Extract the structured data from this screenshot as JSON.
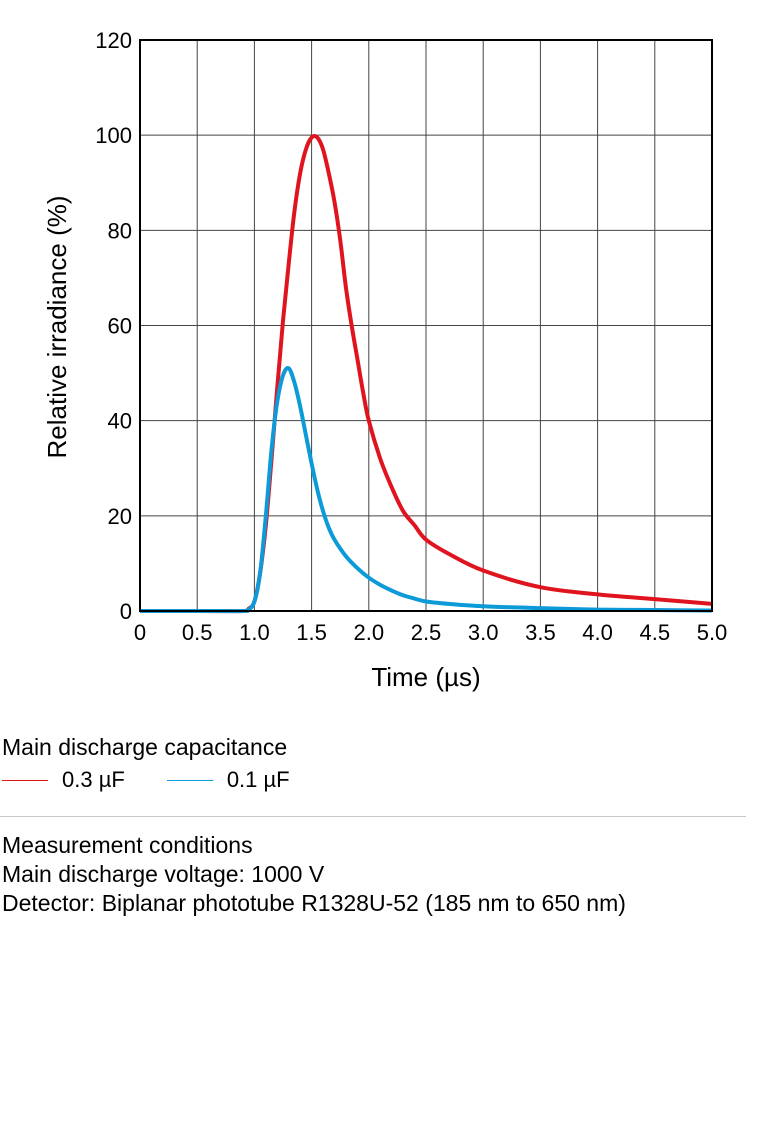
{
  "chart_data": {
    "type": "line",
    "xlabel": "Time (µs)",
    "ylabel": "Relative irradiance (%)",
    "xlim": [
      0,
      5.0
    ],
    "ylim": [
      0,
      120
    ],
    "grid": true,
    "x_ticks": [
      0,
      0.5,
      1.0,
      1.5,
      2.0,
      2.5,
      3.0,
      3.5,
      4.0,
      4.5,
      5.0
    ],
    "x_tick_labels": [
      "0",
      "0.5",
      "1.0",
      "1.5",
      "2.0",
      "2.5",
      "3.0",
      "3.5",
      "4.0",
      "4.5",
      "5.0"
    ],
    "y_ticks": [
      0,
      20,
      40,
      60,
      80,
      100,
      120
    ],
    "y_tick_labels": [
      "0",
      "20",
      "40",
      "60",
      "80",
      "100",
      "120"
    ],
    "series": [
      {
        "name": "0.3 µF",
        "color": "#e0141e",
        "x": [
          0,
          0.5,
          0.9,
          0.95,
          1.0,
          1.05,
          1.1,
          1.15,
          1.2,
          1.25,
          1.3,
          1.35,
          1.4,
          1.45,
          1.5,
          1.55,
          1.6,
          1.65,
          1.7,
          1.75,
          1.8,
          1.85,
          1.9,
          1.95,
          2.0,
          2.1,
          2.2,
          2.3,
          2.4,
          2.5,
          2.7,
          3.0,
          3.5,
          4.0,
          4.5,
          5.0
        ],
        "y": [
          0,
          0,
          0,
          0.5,
          2,
          8,
          18,
          32,
          47,
          61,
          73,
          84,
          92,
          97,
          99.5,
          99.5,
          97,
          92,
          86,
          78,
          68,
          60,
          53,
          46,
          40,
          32,
          26,
          21,
          18,
          15,
          12,
          8.5,
          5,
          3.5,
          2.5,
          1.5
        ]
      },
      {
        "name": "0.1 µF",
        "color": "#0d9ad8",
        "x": [
          0,
          0.5,
          0.9,
          0.95,
          1.0,
          1.05,
          1.1,
          1.15,
          1.2,
          1.25,
          1.3,
          1.35,
          1.4,
          1.45,
          1.5,
          1.55,
          1.6,
          1.65,
          1.7,
          1.8,
          1.9,
          2.0,
          2.1,
          2.2,
          2.3,
          2.4,
          2.5,
          2.7,
          3.0,
          3.5,
          4.0,
          4.5,
          5.0
        ],
        "y": [
          0,
          0,
          0,
          0.3,
          2,
          8,
          20,
          34,
          44,
          49.5,
          51,
          48,
          43,
          37,
          31,
          25.5,
          21,
          17.5,
          15,
          11.5,
          9,
          7,
          5.5,
          4.3,
          3.3,
          2.6,
          2,
          1.5,
          1,
          0.6,
          0.3,
          0.2,
          0.1
        ]
      }
    ]
  },
  "legend": {
    "title": "Main discharge capacitance",
    "items": [
      {
        "label": "0.3 µF",
        "color": "#e0141e"
      },
      {
        "label": "0.1 µF",
        "color": "#0d9ad8"
      }
    ]
  },
  "conditions": {
    "heading": "Measurement conditions",
    "voltage": "Main discharge voltage: 1000 V",
    "detector": "Detector: Biplanar phototube R1328U-52 (185 nm to 650 nm)"
  }
}
